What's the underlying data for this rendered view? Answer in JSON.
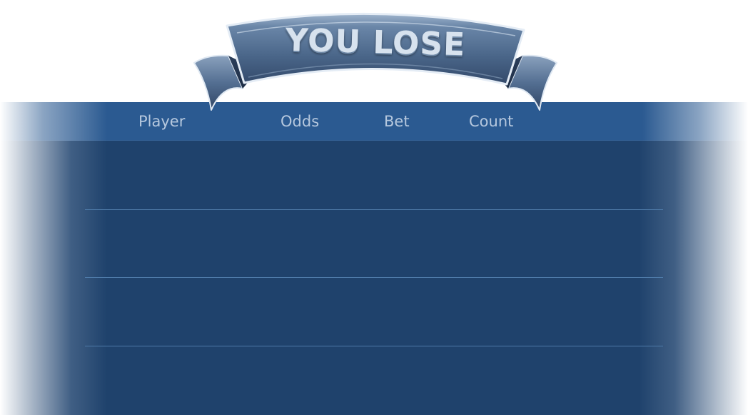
{
  "banner": {
    "title": "YOU LOSE"
  },
  "table": {
    "columns": [
      "Player",
      "Odds",
      "Bet",
      "Count"
    ],
    "rows": [
      {
        "player": "",
        "odds": "",
        "bet": "",
        "count": ""
      },
      {
        "player": "",
        "odds": "",
        "bet": "",
        "count": ""
      },
      {
        "player": "",
        "odds": "",
        "bet": "",
        "count": ""
      },
      {
        "player": "",
        "odds": "",
        "bet": "",
        "count": ""
      }
    ]
  },
  "colors": {
    "header_band": "#2b5a91",
    "panel": "#1f426c",
    "divider": "#4e7aa8",
    "header_text": "#b6c8de",
    "ribbon": "#4d6a8c"
  },
  "icons": {
    "banner": "ribbon-banner-icon"
  }
}
